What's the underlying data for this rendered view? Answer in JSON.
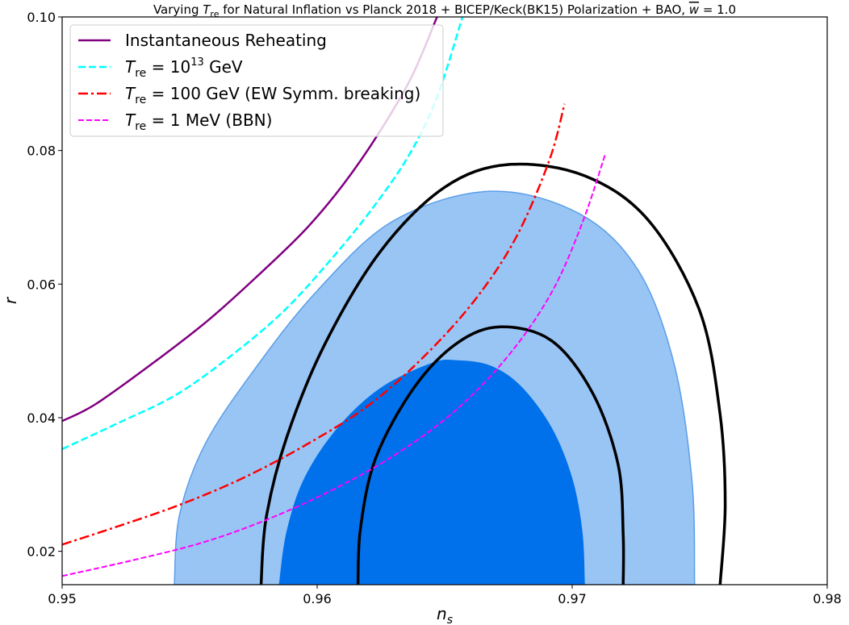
{
  "chart_data": {
    "type": "line",
    "title": "Varying T_re for Natural Inflation vs Planck 2018 + BICEP/Keck(BK15) Polarization + BAO, w̄ = 1.0",
    "xlabel": "n_s",
    "ylabel": "r",
    "xlim": [
      0.95,
      0.98
    ],
    "ylim": [
      0.015,
      0.1
    ],
    "xticks": [
      "0.95",
      "0.96",
      "0.97",
      "0.98"
    ],
    "yticks": [
      "0.02",
      "0.04",
      "0.06",
      "0.08",
      "0.10"
    ],
    "grid": false,
    "legend_position": "top-left",
    "series": [
      {
        "name": "Instantaneous Reheating",
        "color": "#800080",
        "style": "solid",
        "x": [
          0.95,
          0.9513,
          0.9535,
          0.9557,
          0.9576,
          0.9595,
          0.961,
          0.9624,
          0.9637,
          0.9647
        ],
        "y": [
          0.0395,
          0.042,
          0.048,
          0.0545,
          0.061,
          0.068,
          0.0748,
          0.0825,
          0.091,
          0.1
        ]
      },
      {
        "name": "T_re = 10^13 GeV",
        "color": "#00ffff",
        "style": "dashed",
        "x": [
          0.95,
          0.9522,
          0.9545,
          0.9567,
          0.9587,
          0.9605,
          0.9621,
          0.9636,
          0.9647,
          0.9657
        ],
        "y": [
          0.0353,
          0.0392,
          0.0435,
          0.0495,
          0.056,
          0.0635,
          0.071,
          0.0793,
          0.088,
          0.1
        ]
      },
      {
        "name": "T_re = 100 GeV (EW Symm. breaking)",
        "color": "#ff0000",
        "style": "dashdot",
        "x": [
          0.95,
          0.952,
          0.9545,
          0.957,
          0.9595,
          0.962,
          0.9642,
          0.9662,
          0.9678,
          0.9691,
          0.9697
        ],
        "y": [
          0.021,
          0.0235,
          0.0268,
          0.0308,
          0.0358,
          0.0418,
          0.0492,
          0.0577,
          0.067,
          0.0785,
          0.087
        ]
      },
      {
        "name": "T_re = 1 MeV (BBN)",
        "color": "#ff00ff",
        "style": "dashed",
        "x": [
          0.95,
          0.9527,
          0.9555,
          0.958,
          0.9605,
          0.963,
          0.9654,
          0.9675,
          0.9692,
          0.9704,
          0.9713
        ],
        "y": [
          0.0163,
          0.0186,
          0.0213,
          0.0247,
          0.029,
          0.0343,
          0.041,
          0.0493,
          0.0588,
          0.0692,
          0.0795
        ]
      }
    ],
    "contours": [
      {
        "label": "1-sigma filled",
        "color": "#0071eb",
        "x": [
          0.9585,
          0.9588,
          0.9595,
          0.9608,
          0.9625,
          0.9645,
          0.9655,
          0.9668,
          0.968,
          0.9692,
          0.97,
          0.9704,
          0.9705
        ],
        "y": [
          0.015,
          0.023,
          0.031,
          0.0385,
          0.0445,
          0.0482,
          0.0486,
          0.0478,
          0.0447,
          0.0385,
          0.031,
          0.023,
          0.015
        ]
      },
      {
        "label": "2-sigma filled",
        "color": "#99c5f5",
        "x": [
          0.9544,
          0.9546,
          0.9556,
          0.9575,
          0.96,
          0.963,
          0.9668,
          0.9703,
          0.9726,
          0.974,
          0.9747,
          0.9748
        ],
        "y": [
          0.015,
          0.0254,
          0.036,
          0.047,
          0.059,
          0.0695,
          0.0739,
          0.0705,
          0.062,
          0.048,
          0.0304,
          0.015
        ]
      },
      {
        "label": "2-sigma outline",
        "color": "#000000",
        "x": [
          0.9578,
          0.958,
          0.9588,
          0.9603,
          0.9625,
          0.965,
          0.9675,
          0.9705,
          0.973,
          0.975,
          0.9758,
          0.976,
          0.9758
        ],
        "y": [
          0.015,
          0.025,
          0.037,
          0.051,
          0.065,
          0.0745,
          0.0779,
          0.0762,
          0.0695,
          0.056,
          0.0405,
          0.027,
          0.015
        ]
      },
      {
        "label": "1-sigma outline",
        "color": "#000000",
        "x": [
          0.9616,
          0.9617,
          0.9623,
          0.9638,
          0.9655,
          0.9672,
          0.9692,
          0.9708,
          0.9718,
          0.972,
          0.972
        ],
        "y": [
          0.015,
          0.0235,
          0.034,
          0.0445,
          0.0512,
          0.0536,
          0.0515,
          0.0437,
          0.033,
          0.0225,
          0.015
        ]
      }
    ]
  }
}
